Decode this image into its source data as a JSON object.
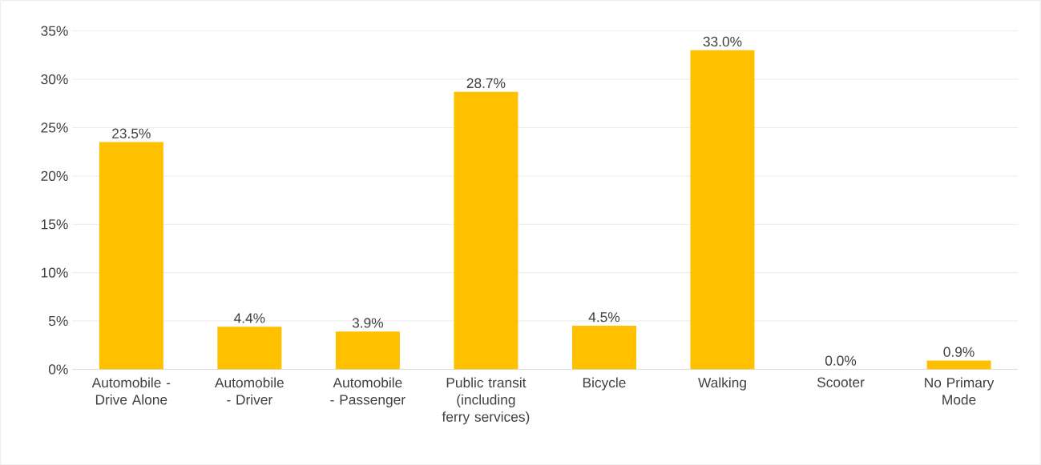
{
  "chart_data": {
    "type": "bar",
    "categories": [
      "Automobile - Drive Alone",
      "Automobile - Driver",
      "Automobile - Passenger",
      "Public transit (including ferry services)",
      "Bicycle",
      "Walking",
      "Scooter",
      "No Primary Mode"
    ],
    "values": [
      23.5,
      4.4,
      3.9,
      28.7,
      4.5,
      33.0,
      0.0,
      0.9
    ],
    "value_labels": [
      "23.5%",
      "4.4%",
      "3.9%",
      "28.7%",
      "4.5%",
      "33.0%",
      "0.0%",
      "0.9%"
    ],
    "color": "#ffc000",
    "ylim": [
      0,
      35
    ],
    "yticks": [
      {
        "value": 0,
        "label": "0%"
      },
      {
        "value": 5,
        "label": "5%"
      },
      {
        "value": 10,
        "label": "10%"
      },
      {
        "value": 15,
        "label": "15%"
      },
      {
        "value": 20,
        "label": "20%"
      },
      {
        "value": 25,
        "label": "25%"
      },
      {
        "value": 30,
        "label": "30%"
      },
      {
        "value": 35,
        "label": "35%"
      }
    ],
    "grid": "y"
  }
}
